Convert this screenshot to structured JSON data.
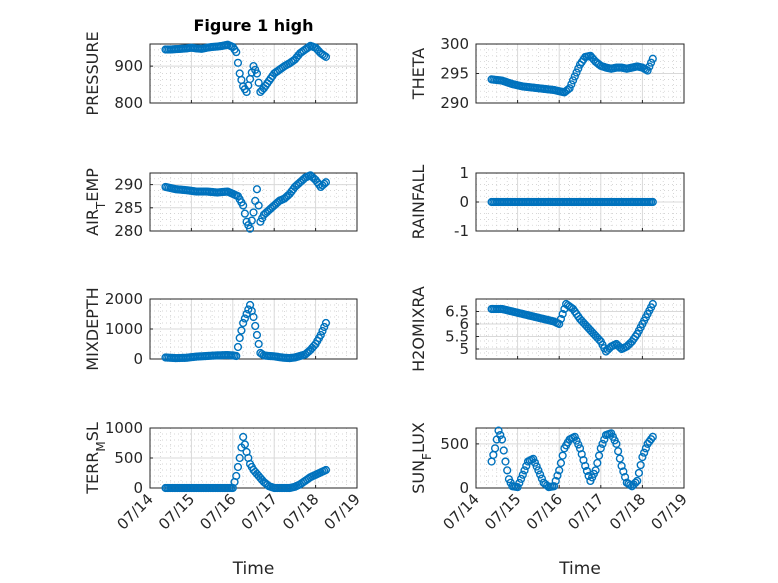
{
  "figure": {
    "title": "Figure 1 high",
    "marker_color": "#0072BD"
  },
  "chart_data": [
    {
      "id": "pressure",
      "type": "scatter",
      "title": "Figure 1 high",
      "ylabel": "PRESSURE",
      "ylim": [
        800,
        960
      ],
      "yticks": [
        800,
        900
      ],
      "x": [
        "07/14 09:00",
        "07/14 12:00",
        "07/14 15:00",
        "07/14 18:00",
        "07/14 21:00",
        "07/15 00:00",
        "07/15 03:00",
        "07/15 06:00",
        "07/15 09:00",
        "07/15 12:00",
        "07/15 15:00",
        "07/15 18:00",
        "07/15 21:00",
        "07/16 00:00",
        "07/16 02:00",
        "07/16 04:00",
        "07/16 06:00",
        "07/16 08:00",
        "07/16 10:00",
        "07/16 12:00",
        "07/16 14:00",
        "07/16 16:00",
        "07/16 18:00",
        "07/16 21:00",
        "07/17 00:00",
        "07/17 03:00",
        "07/17 06:00",
        "07/17 09:00",
        "07/17 12:00",
        "07/17 15:00",
        "07/17 18:00",
        "07/17 21:00",
        "07/18 00:00",
        "07/18 03:00",
        "07/18 06:00"
      ],
      "y": [
        945,
        945,
        946,
        947,
        948,
        950,
        948,
        947,
        950,
        952,
        953,
        955,
        958,
        952,
        938,
        880,
        845,
        830,
        865,
        900,
        880,
        830,
        840,
        860,
        880,
        890,
        900,
        908,
        918,
        935,
        945,
        955,
        950,
        935,
        925
      ]
    },
    {
      "id": "theta",
      "type": "scatter",
      "ylabel": "THETA",
      "ylim": [
        290,
        300
      ],
      "yticks": [
        290,
        295,
        300
      ],
      "x": [
        "07/14 09:00",
        "07/14 15:00",
        "07/14 21:00",
        "07/15 03:00",
        "07/15 09:00",
        "07/15 15:00",
        "07/15 21:00",
        "07/16 00:00",
        "07/16 03:00",
        "07/16 06:00",
        "07/16 09:00",
        "07/16 12:00",
        "07/16 15:00",
        "07/16 18:00",
        "07/16 21:00",
        "07/17 00:00",
        "07/17 03:00",
        "07/17 06:00",
        "07/17 09:00",
        "07/17 12:00",
        "07/17 15:00",
        "07/17 18:00",
        "07/17 21:00",
        "07/18 00:00",
        "07/18 03:00",
        "07/18 06:00"
      ],
      "y": [
        294,
        293.8,
        293.2,
        292.8,
        292.6,
        292.4,
        292.2,
        292,
        291.8,
        292.5,
        294.5,
        296.5,
        297.8,
        298,
        297,
        296.3,
        296,
        295.8,
        296,
        296,
        295.8,
        296,
        296.2,
        296,
        295.5,
        297.5
      ]
    },
    {
      "id": "air_temp",
      "type": "scatter",
      "ylabel": "AIR_TEMP",
      "ylim": [
        280,
        292.5
      ],
      "yticks": [
        280,
        285,
        290
      ],
      "x": [
        "07/14 09:00",
        "07/14 15:00",
        "07/14 21:00",
        "07/15 03:00",
        "07/15 09:00",
        "07/15 15:00",
        "07/15 21:00",
        "07/16 00:00",
        "07/16 03:00",
        "07/16 06:00",
        "07/16 08:00",
        "07/16 10:00",
        "07/16 12:00",
        "07/16 14:00",
        "07/16 16:00",
        "07/16 18:00",
        "07/16 21:00",
        "07/17 00:00",
        "07/17 03:00",
        "07/17 06:00",
        "07/17 09:00",
        "07/17 12:00",
        "07/17 15:00",
        "07/17 18:00",
        "07/17 21:00",
        "07/18 00:00",
        "07/18 03:00",
        "07/18 06:00"
      ],
      "y": [
        289.5,
        289,
        288.8,
        288.5,
        288.5,
        288.3,
        288.5,
        288,
        287.5,
        285.5,
        282,
        280.5,
        284,
        289,
        282,
        283.5,
        284.5,
        285.5,
        286.5,
        287,
        288,
        289.5,
        290.5,
        291.5,
        292,
        291,
        289.5,
        290.5
      ]
    },
    {
      "id": "rainfall",
      "type": "scatter",
      "ylabel": "RAINFALL",
      "ylim": [
        -1,
        1
      ],
      "yticks": [
        -1,
        0,
        1
      ],
      "x": [
        "07/14 09:00",
        "07/14 18:00",
        "07/15 03:00",
        "07/15 12:00",
        "07/15 21:00",
        "07/16 06:00",
        "07/16 15:00",
        "07/17 00:00",
        "07/17 09:00",
        "07/17 18:00",
        "07/18 03:00",
        "07/18 06:00"
      ],
      "y": [
        0,
        0,
        0,
        0,
        0,
        0,
        0,
        0,
        0,
        0,
        0,
        0
      ]
    },
    {
      "id": "mixdepth",
      "type": "scatter",
      "ylabel": "MIXDEPTH",
      "ylim": [
        0,
        2000
      ],
      "yticks": [
        0,
        1000,
        2000
      ],
      "x": [
        "07/14 09:00",
        "07/14 15:00",
        "07/14 21:00",
        "07/15 03:00",
        "07/15 09:00",
        "07/15 15:00",
        "07/15 21:00",
        "07/16 00:00",
        "07/16 02:00",
        "07/16 04:00",
        "07/16 06:00",
        "07/16 08:00",
        "07/16 10:00",
        "07/16 12:00",
        "07/16 14:00",
        "07/16 16:00",
        "07/16 18:00",
        "07/16 21:00",
        "07/17 00:00",
        "07/17 03:00",
        "07/17 06:00",
        "07/17 09:00",
        "07/17 12:00",
        "07/17 15:00",
        "07/17 18:00",
        "07/17 21:00",
        "07/18 00:00",
        "07/18 03:00",
        "07/18 06:00"
      ],
      "y": [
        50,
        30,
        40,
        80,
        100,
        120,
        130,
        120,
        100,
        700,
        1200,
        1500,
        1800,
        1400,
        800,
        200,
        120,
        100,
        90,
        60,
        40,
        30,
        50,
        100,
        150,
        300,
        500,
        800,
        1200
      ]
    },
    {
      "id": "h2omixra",
      "type": "scatter",
      "ylabel": "H2OMIXRA",
      "ylim": [
        4.6,
        7
      ],
      "yticks": [
        5,
        5.5,
        6,
        6.5
      ],
      "x": [
        "07/14 09:00",
        "07/14 15:00",
        "07/14 21:00",
        "07/15 03:00",
        "07/15 09:00",
        "07/15 15:00",
        "07/15 21:00",
        "07/16 00:00",
        "07/16 04:00",
        "07/16 08:00",
        "07/16 12:00",
        "07/16 16:00",
        "07/16 20:00",
        "07/17 00:00",
        "07/17 03:00",
        "07/17 06:00",
        "07/17 09:00",
        "07/17 12:00",
        "07/17 15:00",
        "07/17 18:00",
        "07/17 21:00",
        "07/18 00:00",
        "07/18 03:00",
        "07/18 06:00"
      ],
      "y": [
        6.6,
        6.6,
        6.5,
        6.4,
        6.3,
        6.2,
        6.1,
        6.0,
        6.8,
        6.6,
        6.2,
        5.9,
        5.6,
        5.3,
        4.9,
        5.1,
        5.2,
        5.0,
        5.1,
        5.3,
        5.6,
        6.0,
        6.4,
        6.8
      ]
    },
    {
      "id": "terr_msl",
      "type": "scatter",
      "ylabel": "TERR_MSL",
      "ylim": [
        0,
        1000
      ],
      "yticks": [
        0,
        500,
        1000
      ],
      "xlabel": "Time",
      "xticks": [
        "07/14",
        "07/15",
        "07/16",
        "07/17",
        "07/18",
        "07/19"
      ],
      "x": [
        "07/14 09:00",
        "07/14 15:00",
        "07/14 21:00",
        "07/15 03:00",
        "07/15 09:00",
        "07/15 15:00",
        "07/15 21:00",
        "07/16 00:00",
        "07/16 02:00",
        "07/16 04:00",
        "07/16 06:00",
        "07/16 08:00",
        "07/16 10:00",
        "07/16 12:00",
        "07/16 15:00",
        "07/16 18:00",
        "07/16 21:00",
        "07/17 00:00",
        "07/17 03:00",
        "07/17 06:00",
        "07/17 09:00",
        "07/17 12:00",
        "07/17 15:00",
        "07/17 18:00",
        "07/17 21:00",
        "07/18 00:00",
        "07/18 03:00",
        "07/18 06:00"
      ],
      "y": [
        0,
        0,
        0,
        0,
        0,
        0,
        0,
        0,
        200,
        500,
        850,
        600,
        400,
        300,
        200,
        100,
        30,
        0,
        0,
        0,
        0,
        20,
        60,
        120,
        180,
        220,
        260,
        300
      ]
    },
    {
      "id": "sun_flux",
      "type": "scatter",
      "ylabel": "SUN_FLUX",
      "ylim": [
        0,
        680
      ],
      "yticks": [
        0,
        500
      ],
      "xlabel": "Time",
      "xticks": [
        "07/14",
        "07/15",
        "07/16",
        "07/17",
        "07/18",
        "07/19"
      ],
      "x": [
        "07/14 09:00",
        "07/14 11:00",
        "07/14 13:00",
        "07/14 15:00",
        "07/14 17:00",
        "07/14 19:00",
        "07/14 21:00",
        "07/15 00:00",
        "07/15 03:00",
        "07/15 06:00",
        "07/15 09:00",
        "07/15 12:00",
        "07/15 15:00",
        "07/15 18:00",
        "07/15 21:00",
        "07/16 00:00",
        "07/16 03:00",
        "07/16 06:00",
        "07/16 09:00",
        "07/16 12:00",
        "07/16 15:00",
        "07/16 18:00",
        "07/16 21:00",
        "07/17 00:00",
        "07/17 03:00",
        "07/17 06:00",
        "07/17 09:00",
        "07/17 12:00",
        "07/17 15:00",
        "07/17 18:00",
        "07/17 21:00",
        "07/18 00:00",
        "07/18 03:00",
        "07/18 06:00"
      ],
      "y": [
        300,
        450,
        650,
        550,
        300,
        100,
        20,
        10,
        150,
        300,
        330,
        200,
        60,
        10,
        20,
        200,
        450,
        550,
        580,
        450,
        250,
        80,
        200,
        450,
        600,
        620,
        500,
        250,
        60,
        20,
        80,
        350,
        500,
        580
      ]
    }
  ]
}
